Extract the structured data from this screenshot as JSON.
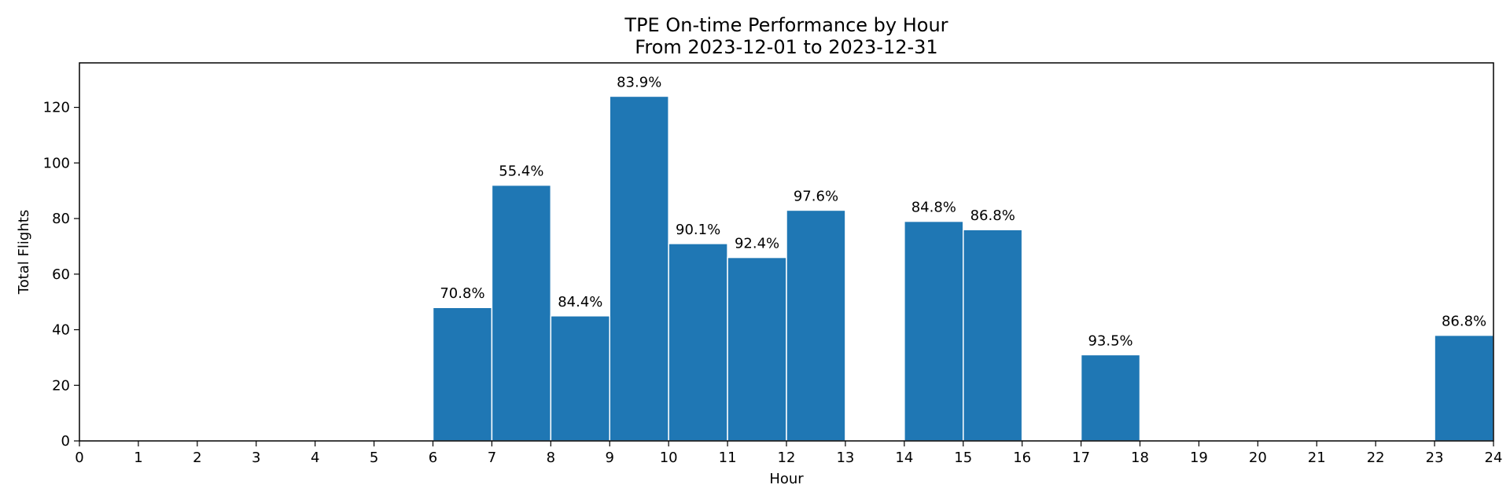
{
  "chart_data": {
    "type": "bar",
    "title": "TPE On-time Performance by Hour",
    "subtitle": "From 2023-12-01 to 2023-12-31",
    "xlabel": "Hour",
    "ylabel": "Total Flights",
    "xlim": [
      0,
      24
    ],
    "ylim": [
      0,
      136
    ],
    "x_ticks": [
      "0",
      "1",
      "2",
      "3",
      "4",
      "5",
      "6",
      "7",
      "8",
      "9",
      "10",
      "11",
      "12",
      "13",
      "14",
      "15",
      "16",
      "17",
      "18",
      "19",
      "20",
      "21",
      "22",
      "23",
      "24"
    ],
    "y_ticks": [
      "0",
      "20",
      "40",
      "60",
      "80",
      "100",
      "120"
    ],
    "bar_color": "#1f77b4",
    "grid": false,
    "bars": [
      {
        "hour": 6,
        "value": 48,
        "label": "70.8%"
      },
      {
        "hour": 7,
        "value": 92,
        "label": "55.4%"
      },
      {
        "hour": 8,
        "value": 45,
        "label": "84.4%"
      },
      {
        "hour": 9,
        "value": 124,
        "label": "83.9%"
      },
      {
        "hour": 10,
        "value": 71,
        "label": "90.1%"
      },
      {
        "hour": 11,
        "value": 66,
        "label": "92.4%"
      },
      {
        "hour": 12,
        "value": 83,
        "label": "97.6%"
      },
      {
        "hour": 14,
        "value": 79,
        "label": "84.8%"
      },
      {
        "hour": 15,
        "value": 76,
        "label": "86.8%"
      },
      {
        "hour": 17,
        "value": 31,
        "label": "93.5%"
      },
      {
        "hour": 23,
        "value": 38,
        "label": "86.8%"
      }
    ]
  }
}
